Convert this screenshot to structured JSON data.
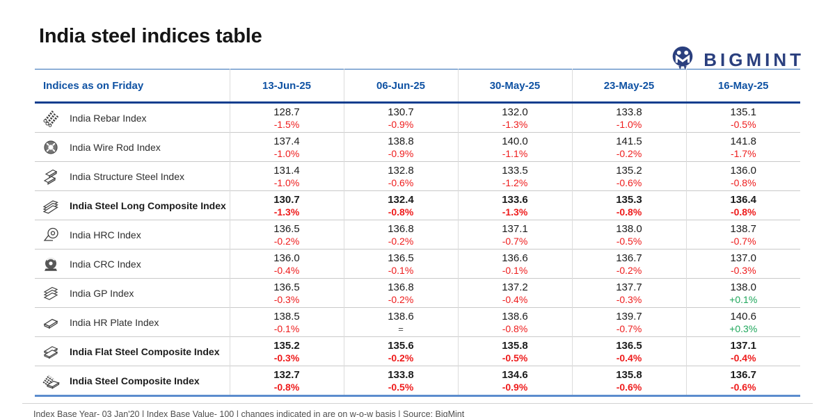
{
  "page": {
    "title": "India steel indices table",
    "brand": "BIGMINT",
    "footer_note": "Index Base Year- 03 Jan'20 | Index Base Value- 100 | changes indicated in are on w-o-w basis | Source: BigMint"
  },
  "colors": {
    "header_blue": "#0f52a3",
    "navy_border": "#0e3d8e",
    "table_bottom_blue": "#5b8ccd",
    "negative_red": "#ee1b1b",
    "positive_green": "#1fa75c",
    "logo_navy": "#2a3f7e"
  },
  "chart_data": {
    "type": "table",
    "title": "India steel indices table",
    "columns": [
      "Indices as on Friday",
      "13-Jun-25",
      "06-Jun-25",
      "30-May-25",
      "23-May-25",
      "16-May-25"
    ],
    "rows": [
      {
        "icon": "rebar-bundle-icon",
        "name": "India Rebar Index",
        "bold": false,
        "values": [
          "128.7",
          "130.7",
          "132.0",
          "133.8",
          "135.1"
        ],
        "changes": [
          "-1.5%",
          "-0.9%",
          "-1.3%",
          "-1.0%",
          "-0.5%"
        ]
      },
      {
        "icon": "wire-rod-coil-icon",
        "name": "India Wire Rod Index",
        "bold": false,
        "values": [
          "137.4",
          "138.8",
          "140.0",
          "141.5",
          "141.8"
        ],
        "changes": [
          "-1.0%",
          "-0.9%",
          "-1.1%",
          "-0.2%",
          "-1.7%"
        ]
      },
      {
        "icon": "structure-steel-icon",
        "name": "India Structure Steel Index",
        "bold": false,
        "values": [
          "131.4",
          "132.8",
          "133.5",
          "135.2",
          "136.0"
        ],
        "changes": [
          "-1.0%",
          "-0.6%",
          "-1.2%",
          "-0.6%",
          "-0.8%"
        ]
      },
      {
        "icon": "long-steel-stack-icon",
        "name": "India Steel Long Composite Index",
        "bold": true,
        "values": [
          "130.7",
          "132.4",
          "133.6",
          "135.3",
          "136.4"
        ],
        "changes": [
          "-1.3%",
          "-0.8%",
          "-1.3%",
          "-0.8%",
          "-0.8%"
        ]
      },
      {
        "icon": "hrc-coil-icon",
        "name": "India HRC Index",
        "bold": false,
        "values": [
          "136.5",
          "136.8",
          "137.1",
          "138.0",
          "138.7"
        ],
        "changes": [
          "-0.2%",
          "-0.2%",
          "-0.7%",
          "-0.5%",
          "-0.7%"
        ]
      },
      {
        "icon": "crc-coil-icon",
        "name": "India CRC Index",
        "bold": false,
        "values": [
          "136.0",
          "136.5",
          "136.6",
          "136.7",
          "137.0"
        ],
        "changes": [
          "-0.4%",
          "-0.1%",
          "-0.1%",
          "-0.2%",
          "-0.3%"
        ]
      },
      {
        "icon": "gp-sheets-icon",
        "name": "India GP Index",
        "bold": false,
        "values": [
          "136.5",
          "136.8",
          "137.2",
          "137.7",
          "138.0"
        ],
        "changes": [
          "-0.3%",
          "-0.2%",
          "-0.4%",
          "-0.3%",
          "+0.1%"
        ]
      },
      {
        "icon": "hr-plate-icon",
        "name": "India HR Plate Index",
        "bold": false,
        "values": [
          "138.5",
          "138.6",
          "138.6",
          "139.7",
          "140.6"
        ],
        "changes": [
          "-0.1%",
          "=",
          "-0.8%",
          "-0.7%",
          "+0.3%"
        ]
      },
      {
        "icon": "flat-steel-stack-icon",
        "name": "India Flat Steel Composite Index",
        "bold": true,
        "values": [
          "135.2",
          "135.6",
          "135.8",
          "136.5",
          "137.1"
        ],
        "changes": [
          "-0.3%",
          "-0.2%",
          "-0.5%",
          "-0.4%",
          "-0.4%"
        ]
      },
      {
        "icon": "steel-composite-icon",
        "name": "India Steel Composite Index",
        "bold": true,
        "values": [
          "132.7",
          "133.8",
          "134.6",
          "135.8",
          "136.7"
        ],
        "changes": [
          "-0.8%",
          "-0.5%",
          "-0.9%",
          "-0.6%",
          "-0.6%"
        ]
      }
    ]
  }
}
